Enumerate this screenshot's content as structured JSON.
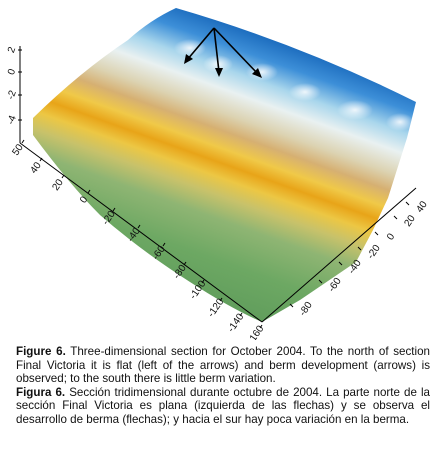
{
  "figure": {
    "z_ticks": [
      "2",
      "0",
      "-2",
      "-4"
    ],
    "y_ticks": [
      "50",
      "40",
      "20",
      "0",
      "-20",
      "-40",
      "-60",
      "-80",
      "-100",
      "-120",
      "-140",
      "-160"
    ],
    "x_ticks": [
      "-80",
      "-60",
      "-40",
      "-20",
      "0",
      "20",
      "40"
    ]
  },
  "caption": {
    "en_label": "Figure 6.",
    "en_text": "Three-dimensional section for October 2004. To the north of section Final Victoria it is flat (left of the arrows) and berm development (arrows) is observed; to the south there is little berm variation.",
    "es_label": "Figura 6.",
    "es_text": "Sección tridimensional durante octubre de 2004. La parte norte de la sección Final Victoria es plana (izquierda de las flechas) y se observa el desarrollo de berma (flechas); y hacia el sur hay poca variación en la berma."
  }
}
